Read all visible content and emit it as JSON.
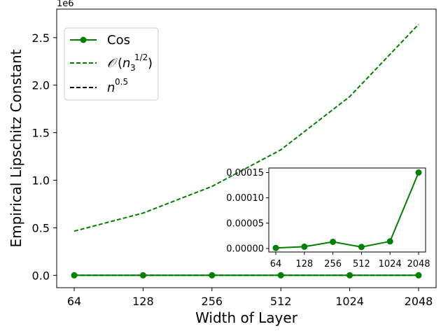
{
  "chart_data": [
    {
      "type": "line",
      "xscale": "log2",
      "x": [
        64,
        128,
        256,
        512,
        1024,
        2048
      ],
      "xticklabels": [
        "64",
        "128",
        "256",
        "512",
        "1024",
        "2048"
      ],
      "xlabel": "Width of Layer",
      "ylabel": "Empirical Lipschitz Constant",
      "y_offset_label": "1e6",
      "ylim": [
        -0.13,
        2.8
      ],
      "yticks": [
        0.0,
        0.5,
        1.0,
        1.5,
        2.0,
        2.5
      ],
      "yticklabels": [
        "0.0",
        "0.5",
        "1.0",
        "1.5",
        "2.0",
        "2.5"
      ],
      "units_multiplier": 1000000,
      "series": [
        {
          "name": "Cos",
          "style": "solid",
          "marker": "circle",
          "color": "#008000",
          "values": [
            0.0,
            0.0,
            0.0,
            0.0,
            0.0,
            0.0
          ]
        },
        {
          "name": "O(n3^(1/2))",
          "style": "dashed",
          "color": "#008000",
          "x": [
            64,
            128,
            256,
            512,
            1024,
            2048
          ],
          "values": [
            0.465,
            0.655,
            0.935,
            1.32,
            1.88,
            2.64
          ]
        },
        {
          "name": "n^0.5",
          "style": "dashed",
          "color": "#000000",
          "values": [
            0.0,
            0.0,
            0.0,
            0.0,
            0.0,
            0.0
          ]
        }
      ],
      "legend": {
        "placement": "upper-left",
        "entries": [
          "Cos",
          "O(n3^(1/2))",
          "n^0.5"
        ]
      },
      "grid": false
    },
    {
      "type": "line",
      "role": "inset",
      "xscale": "log2",
      "x": [
        64,
        128,
        256,
        512,
        1024,
        2048
      ],
      "xticklabels": [
        "64",
        "128",
        "256",
        "512",
        "1024",
        "2048"
      ],
      "ylim": [
        -7e-06,
        0.000159
      ],
      "yticks": [
        0.0,
        5e-05,
        0.0001,
        0.00015
      ],
      "yticklabels": [
        "0.00000",
        "0.00005",
        "0.00010",
        "0.00015"
      ],
      "series": [
        {
          "name": "Cos",
          "style": "solid",
          "marker": "circle",
          "color": "#008000",
          "x": [
            64,
            128,
            256,
            512,
            1024,
            2048
          ],
          "values": [
            1e-06,
            3.5e-06,
            1.3e-05,
            3e-06,
            1.4e-05,
            0.00015
          ]
        }
      ],
      "grid": false
    }
  ]
}
